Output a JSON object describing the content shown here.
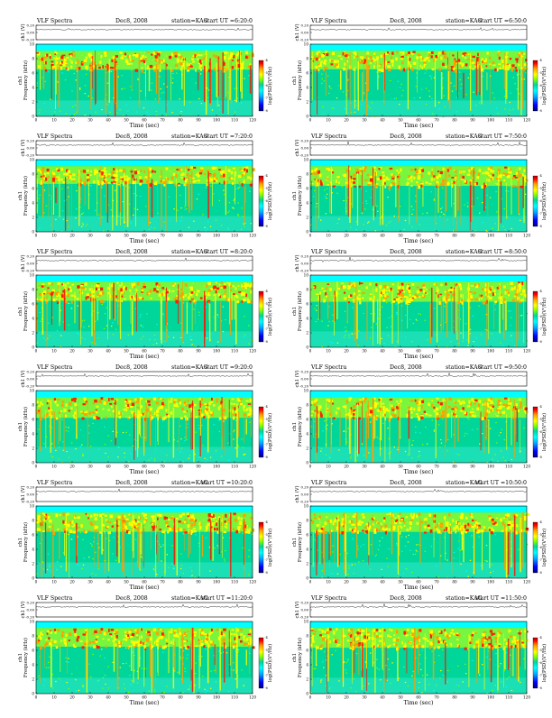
{
  "common": {
    "label_prefix": "VLF Spectra",
    "date": "Dec8, 2008",
    "station": "station=KAG",
    "time_axis_label": "Time (sec)",
    "freq_axis_label": "Frequency (kHz)",
    "channel_label": "ch1",
    "amp_axis_label": "ch1 (V)",
    "colorbar_label": "log(PSD)(V²/Hz)",
    "amp_ticks": [
      "0.20",
      "0.00",
      "-0.20"
    ],
    "colorbar_ticks": [
      "-4",
      "-5",
      "-6",
      "-7",
      "-8"
    ]
  },
  "panels": [
    {
      "start": "start UT =6:20:0"
    },
    {
      "start": "start UT =6:50:0"
    },
    {
      "start": "start UT =7:20:0"
    },
    {
      "start": "start UT =7:50:0"
    },
    {
      "start": "start UT =8:20:0"
    },
    {
      "start": "start UT =8:50:0"
    },
    {
      "start": "start UT =9:20:0"
    },
    {
      "start": "start UT =9:50:0"
    },
    {
      "start": "start UT =10:20:0"
    },
    {
      "start": "start UT =10:50:0"
    },
    {
      "start": "start UT =11:20:0"
    },
    {
      "start": "start UT =11:50:0"
    }
  ],
  "chart_data": {
    "type": "heatmap",
    "x": {
      "label": "Time (sec)",
      "range": [
        0,
        120
      ],
      "ticks": [
        0,
        10,
        20,
        30,
        40,
        50,
        60,
        70,
        80,
        90,
        100,
        110,
        120
      ]
    },
    "y": {
      "label": "Frequency (kHz)",
      "range": [
        0,
        10
      ],
      "ticks": [
        0,
        2,
        4,
        6,
        8,
        10
      ]
    },
    "amplitude": {
      "label": "ch1 (V)",
      "range": [
        -0.2,
        0.2
      ]
    },
    "colorbar": {
      "label": "log(PSD)(V²/Hz)",
      "colors": [
        "#00007f",
        "#0000ff",
        "#00a8ff",
        "#00ffff",
        "#00d59a",
        "#7fff00",
        "#ffff00",
        "#ff9f00",
        "#ff0000",
        "#b00000"
      ]
    },
    "grid": false
  }
}
